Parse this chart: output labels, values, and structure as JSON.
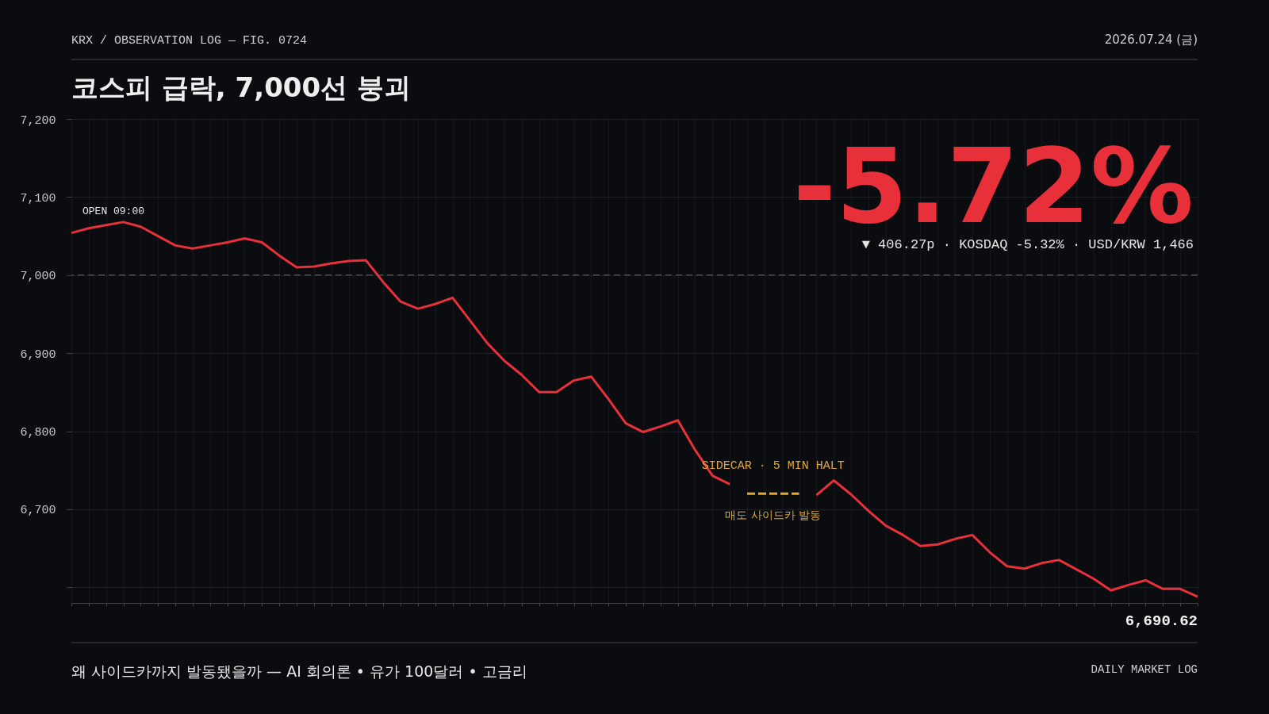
{
  "chart_data": {
    "type": "line",
    "title": "코스피 급락, 7,000선 붕괴",
    "annotations": [
      "KRX / OBSERVATION LOG — FIG. 0724",
      "2026.07.24 (금)",
      "-5.72%",
      "▼ 406.27p · KOSDAQ -5.32% · USD/KRW 1,466",
      "OPEN 09:00",
      "SIDECAR · 5 MIN HALT",
      "매도 사이드카 발동",
      "6,690.62",
      "왜 사이드카까지 발동됐을까 — AI 회의론 • 유가 100달러 • 고금리",
      "DAILY MARKET LOG"
    ],
    "categories": [
      null,
      null,
      null,
      null,
      null,
      null,
      null,
      null,
      null,
      null,
      null,
      null,
      null,
      null,
      null,
      null,
      null,
      null,
      null,
      null,
      null,
      null,
      null,
      null,
      null,
      null,
      null,
      null,
      null,
      null,
      null,
      null,
      null,
      null,
      null,
      null,
      null,
      null,
      null,
      null,
      null,
      null,
      null,
      null,
      null,
      null,
      null,
      null,
      null,
      null,
      null,
      null,
      null,
      null,
      null,
      null,
      null,
      null,
      null,
      null,
      null,
      null,
      null,
      null,
      null,
      null
    ],
    "series": [
      {
        "color": "#e8303a",
        "values": [
          7054,
          7060,
          7064,
          7068,
          7062,
          7050,
          7038,
          7034,
          7038,
          7042,
          7047,
          7042,
          7025,
          7010,
          7011,
          7015,
          7018,
          7019,
          6991,
          6966,
          6957,
          6963,
          6971,
          6942,
          6913,
          6890,
          6872,
          6850,
          6850,
          6865,
          6870,
          6841,
          6810,
          6799,
          6806,
          6814,
          6776,
          6743,
          6732,
          null,
          null,
          null,
          null,
          null,
          null,
          null,
          null,
          null,
          null,
          null,
          null,
          null,
          null,
          null,
          null,
          null,
          null,
          null,
          null,
          null,
          null,
          null,
          null,
          null,
          null,
          null
        ]
      },
      {
        "color": "#e8303a",
        "values": [
          null,
          null,
          null,
          null,
          null,
          null,
          null,
          null,
          null,
          null,
          null,
          null,
          null,
          null,
          null,
          null,
          null,
          null,
          null,
          null,
          null,
          null,
          null,
          null,
          null,
          null,
          null,
          null,
          null,
          null,
          null,
          null,
          null,
          null,
          null,
          null,
          null,
          null,
          null,
          null,
          null,
          null,
          null,
          6718,
          6737,
          6719,
          6698,
          6679,
          6667,
          6653,
          6655,
          6662,
          6667,
          6645,
          6627,
          6624,
          6631,
          6635,
          6623,
          6611,
          6596,
          6603,
          6609,
          6598,
          6598,
          6588
        ]
      },
      {
        "color": "#e0a83a",
        "line_style": "dashed",
        "values": [
          null,
          null,
          null,
          null,
          null,
          null,
          null,
          null,
          null,
          null,
          null,
          null,
          null,
          null,
          null,
          null,
          null,
          null,
          null,
          null,
          null,
          null,
          null,
          null,
          null,
          null,
          null,
          null,
          null,
          null,
          null,
          null,
          null,
          null,
          null,
          null,
          null,
          null,
          null,
          6720,
          6720,
          6720,
          6720,
          null,
          null,
          null,
          null,
          null,
          null,
          null,
          null,
          null,
          null,
          null,
          null,
          null,
          null,
          null,
          null,
          null,
          null,
          null,
          null,
          null,
          null,
          null
        ]
      }
    ],
    "ylim": [
      6580,
      7200
    ],
    "yticks": [
      {
        "value": 6600,
        "label": null
      },
      {
        "value": 6700,
        "label": "6,700"
      },
      {
        "value": 6800,
        "label": "6,800"
      },
      {
        "value": 6900,
        "label": "6,900"
      },
      {
        "value": 7000,
        "label": "7,000"
      },
      {
        "value": 7100,
        "label": "7,100"
      },
      {
        "value": 7200,
        "label": "7,200"
      }
    ],
    "tick_labels": "y",
    "grid": true,
    "ref_lines": [
      {
        "axis": "y",
        "value": 7000,
        "color": "#6a6a6a",
        "line_style": "dashed"
      }
    ]
  }
}
